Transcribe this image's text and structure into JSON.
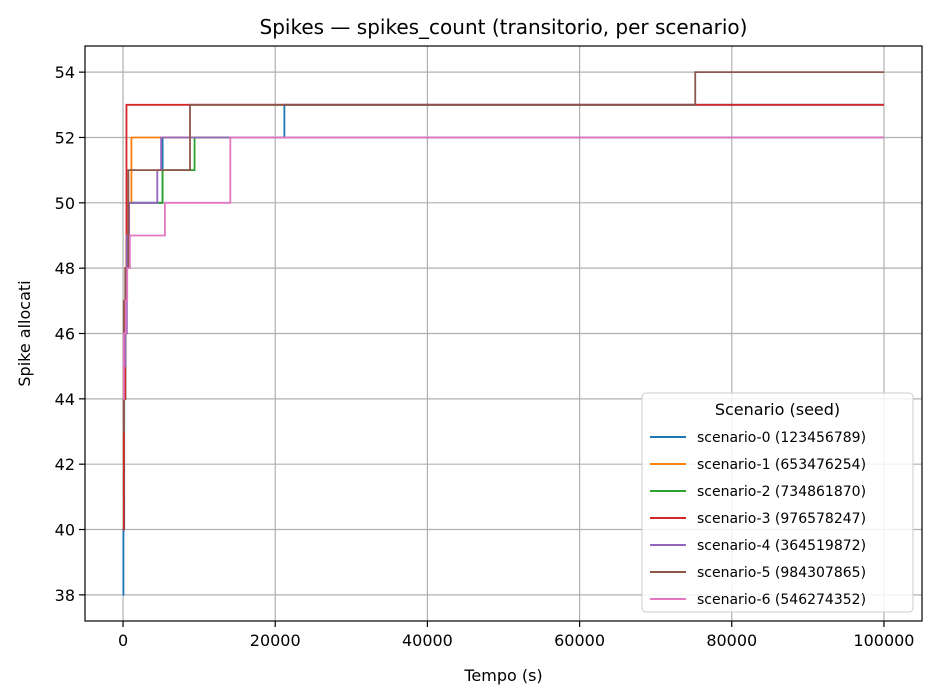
{
  "chart_data": {
    "type": "line",
    "title": "Spikes — spikes_count (transitorio, per scenario)",
    "xlabel": "Tempo (s)",
    "ylabel": "Spike allocati",
    "xlim": [
      -5000,
      105000
    ],
    "ylim": [
      37.2,
      54.8
    ],
    "xticks": [
      0,
      20000,
      40000,
      60000,
      80000,
      100000
    ],
    "xtick_labels": [
      "0",
      "20000",
      "40000",
      "60000",
      "80000",
      "100000"
    ],
    "yticks": [
      38,
      40,
      42,
      44,
      46,
      48,
      50,
      52,
      54
    ],
    "ytick_labels": [
      "38",
      "40",
      "42",
      "44",
      "46",
      "48",
      "50",
      "52",
      "54"
    ],
    "grid": true,
    "legend": {
      "title": "Scenario (seed)",
      "placement": "lower-right"
    },
    "series": [
      {
        "name": "scenario-0 (123456789)",
        "color": "#1f77b4",
        "step": true,
        "x": [
          0,
          50,
          150,
          300,
          500,
          700,
          1000,
          4800,
          5200,
          21200,
          100000
        ],
        "y": [
          38,
          40,
          44,
          47,
          49,
          50,
          50,
          50,
          52,
          53,
          53
        ]
      },
      {
        "name": "scenario-1 (653476254)",
        "color": "#ff7f0e",
        "step": true,
        "x": [
          0,
          100,
          300,
          500,
          800,
          1100,
          100000
        ],
        "y": [
          42,
          45,
          48,
          49,
          50,
          52,
          52
        ]
      },
      {
        "name": "scenario-2 (734861870)",
        "color": "#2ca02c",
        "step": true,
        "x": [
          0,
          100,
          300,
          500,
          700,
          1000,
          5200,
          9400,
          100000
        ],
        "y": [
          41,
          44,
          47,
          49,
          50,
          50,
          51,
          52,
          52
        ]
      },
      {
        "name": "scenario-3 (976578247)",
        "color": "#d62728",
        "step": true,
        "x": [
          0,
          100,
          300,
          450,
          100000
        ],
        "y": [
          40,
          44,
          48,
          53,
          53
        ]
      },
      {
        "name": "scenario-4 (364519872)",
        "color": "#9467bd",
        "step": true,
        "x": [
          0,
          100,
          300,
          500,
          800,
          4500,
          5000,
          14000,
          100000
        ],
        "y": [
          43,
          45,
          46,
          49,
          50,
          51,
          52,
          52,
          52
        ]
      },
      {
        "name": "scenario-5 (984307865)",
        "color": "#8c564b",
        "step": true,
        "x": [
          0,
          100,
          300,
          700,
          8800,
          75200,
          100000
        ],
        "y": [
          43,
          47,
          48,
          51,
          53,
          54,
          54
        ]
      },
      {
        "name": "scenario-6 (546274352)",
        "color": "#e377c2",
        "step": true,
        "x": [
          0,
          100,
          350,
          550,
          900,
          1200,
          5500,
          14100,
          100000
        ],
        "y": [
          44,
          46,
          47,
          48,
          49,
          49,
          50,
          52,
          52
        ]
      }
    ]
  }
}
